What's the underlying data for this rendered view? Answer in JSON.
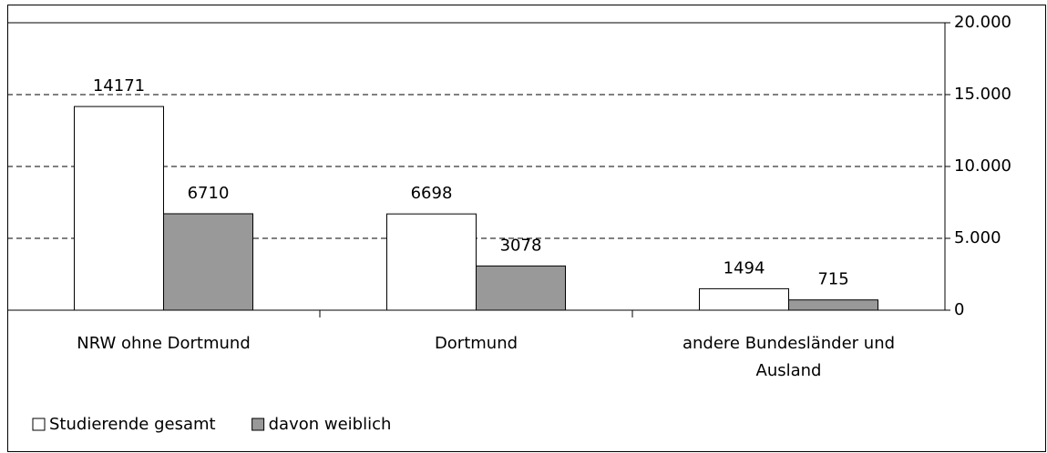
{
  "chart_data": {
    "type": "bar",
    "categories": [
      "NRW ohne Dortmund",
      "Dortmund",
      "andere Bundesländer und Ausland"
    ],
    "series": [
      {
        "name": "Studierende gesamt",
        "color": "#ffffff",
        "values": [
          14171,
          6698,
          1494
        ]
      },
      {
        "name": "davon weiblich",
        "color": "#999999",
        "values": [
          6710,
          3078,
          715
        ]
      }
    ],
    "ylim": [
      0,
      20000
    ],
    "yticks": [
      0,
      {
        "value": 5000,
        "label": "5.000"
      },
      {
        "value": 10000,
        "label": "10.000"
      },
      {
        "value": 15000,
        "label": "15.000"
      },
      {
        "value": 20000,
        "label": "20.000"
      }
    ],
    "grid": true,
    "legend": "bottom-left"
  }
}
